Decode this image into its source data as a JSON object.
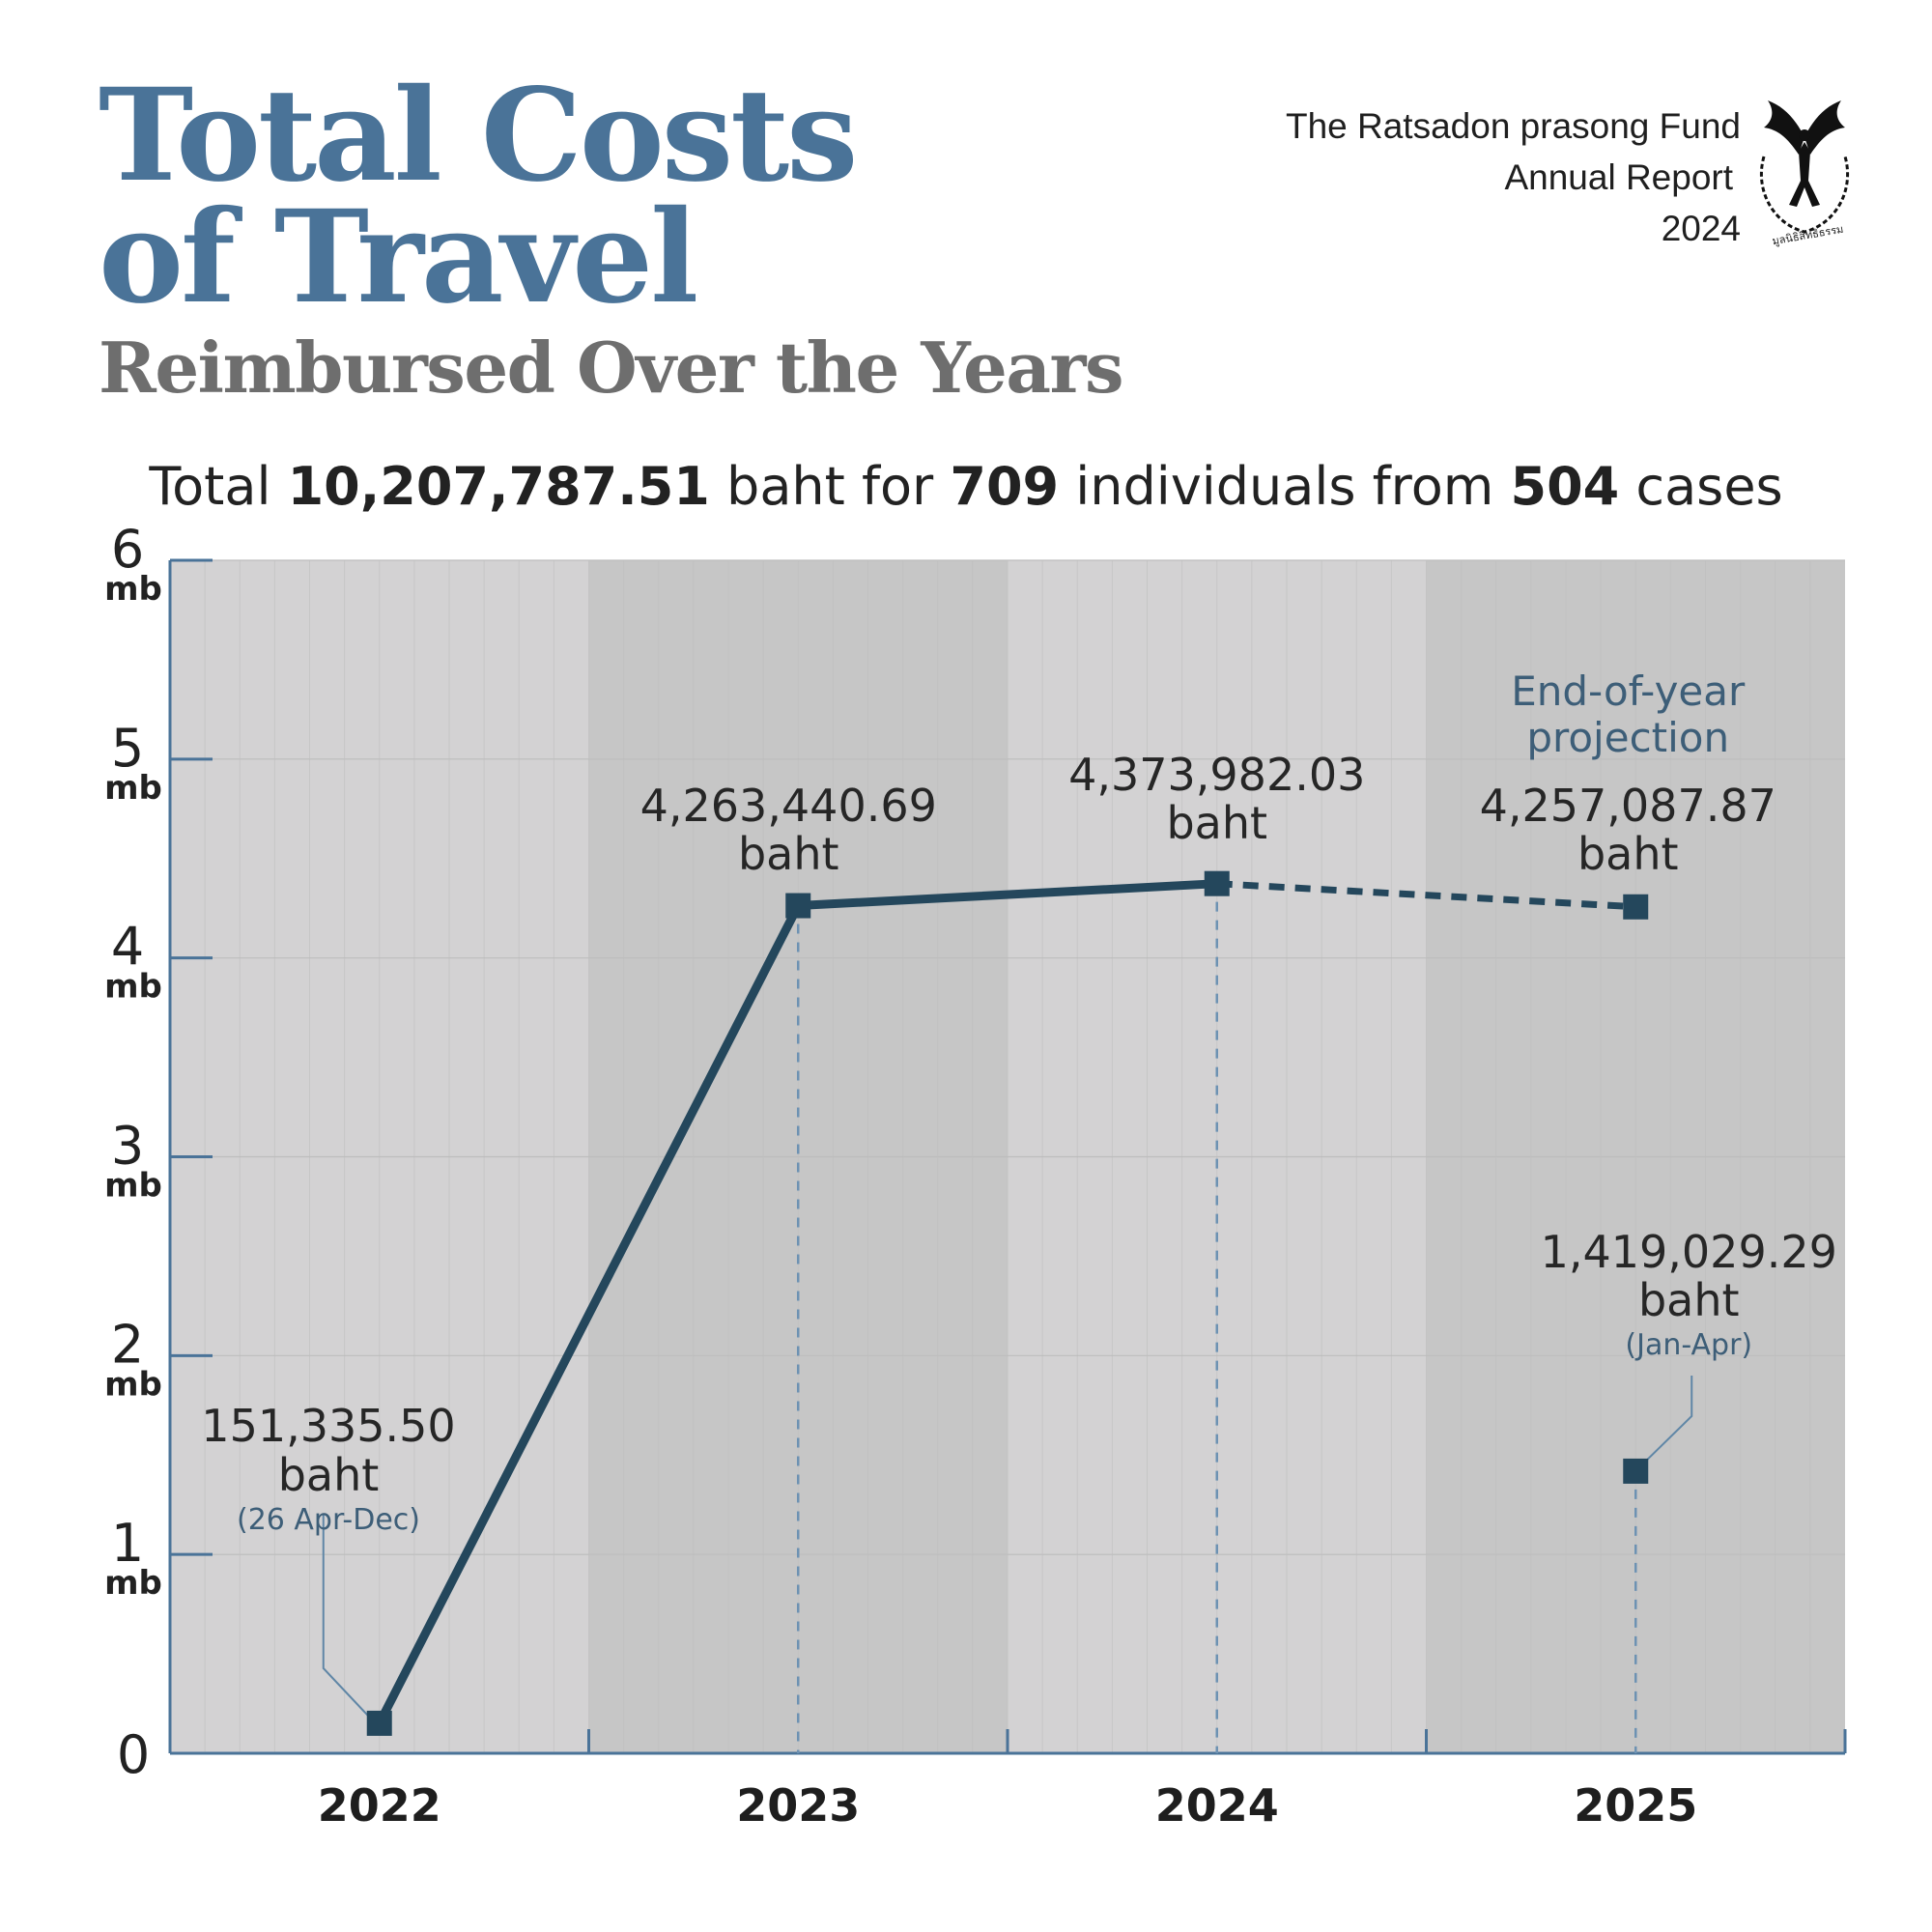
{
  "header": {
    "title_line1": "Total Costs",
    "title_line2": "of Travel",
    "subtitle": "Reimbursed Over the Years",
    "org_line1": "The Ratsadon prasong Fund",
    "org_line2": "Annual Report",
    "org_line3": "2024",
    "logo_text": "มูลนิธิสิทธิธรรม"
  },
  "summary": {
    "prefix": "Total ",
    "total": "10,207,787.51",
    "mid1": " baht for ",
    "individuals": "709",
    "mid2": " individuals from ",
    "cases": "504",
    "suffix": " cases"
  },
  "colors": {
    "title": "#4a7398",
    "subtitle": "#6e6e6e",
    "line": "#24475c",
    "axis": "#4a7398",
    "band_light": "#d3d2d3",
    "band_dark": "#c6c6c6",
    "note": "#3d5e78"
  },
  "chart_data": {
    "type": "line",
    "categories": [
      "2022",
      "2023",
      "2024",
      "2025"
    ],
    "y_ticks": [
      "0",
      "1",
      "2",
      "3",
      "4",
      "5",
      "6"
    ],
    "y_unit": "mb",
    "ylim": [
      0,
      6
    ],
    "grid": true,
    "series": [
      {
        "values": [
          0.151,
          4.263,
          4.374,
          null
        ]
      },
      {
        "values": [
          null,
          null,
          4.374,
          4.257
        ],
        "style": "dashed"
      },
      {
        "values": [
          null,
          null,
          null,
          1.419
        ],
        "style": "point"
      }
    ],
    "data_labels": [
      {
        "value": "151,335.50",
        "unit": "baht",
        "note": "(26 Apr-Dec)"
      },
      {
        "value": "4,263,440.69",
        "unit": "baht"
      },
      {
        "value": "4,373,982.03",
        "unit": "baht"
      },
      {
        "value": "4,257,087.87",
        "unit": "baht",
        "heading": [
          "End-of-year",
          "projection"
        ]
      },
      {
        "value": "1,419,029.29",
        "unit": "baht",
        "note": "(Jan-Apr)"
      }
    ]
  }
}
